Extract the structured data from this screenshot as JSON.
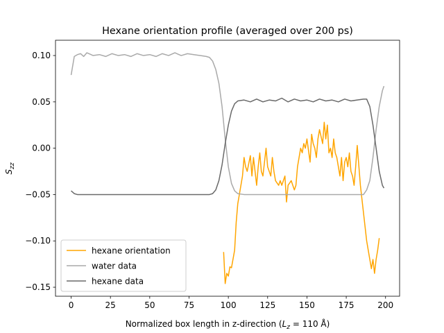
{
  "chart_data": {
    "type": "line",
    "title": "Hexane orientation profile (averaged over 200 ps)",
    "xlabel": [
      "Normalized box length in z-direction (",
      "L",
      "z",
      " = 110 Å)"
    ],
    "ylabel": [
      "S",
      "zz"
    ],
    "xlim": [
      -9.95,
      208.95
    ],
    "ylim": [
      -0.1597,
      0.1165
    ],
    "xticks": [
      0,
      25,
      50,
      75,
      100,
      125,
      150,
      175,
      200
    ],
    "yticks": [
      {
        "value": -0.15,
        "label": "−0.15"
      },
      {
        "value": -0.1,
        "label": "−0.10"
      },
      {
        "value": -0.05,
        "label": "−0.05"
      },
      {
        "value": 0,
        "label": "0.00"
      },
      {
        "value": 0.05,
        "label": "0.05"
      },
      {
        "value": 0.1,
        "label": "0.10"
      }
    ],
    "legend": "lower left",
    "series": [
      {
        "name": "hexane orientation",
        "color": "#ffa500",
        "x": [
          97,
          98,
          99,
          100,
          101,
          102,
          104,
          105,
          106,
          107,
          108,
          109,
          110,
          111,
          112,
          114,
          115,
          116,
          118,
          119,
          120,
          121,
          122,
          124,
          125,
          126,
          127,
          128,
          129,
          130,
          132,
          133,
          134,
          136,
          137,
          138,
          140,
          141,
          142,
          143,
          144,
          145,
          146,
          147,
          148,
          149,
          150,
          152,
          153,
          154,
          155,
          156,
          157,
          158,
          160,
          161,
          162,
          163,
          164,
          165,
          166,
          167,
          168,
          169,
          170,
          171,
          172,
          173,
          174,
          175,
          176,
          177,
          178,
          179,
          180,
          181,
          182,
          184,
          186,
          188,
          190,
          191,
          192,
          193,
          194,
          195,
          196
        ],
        "values": [
          -0.112,
          -0.146,
          -0.135,
          -0.138,
          -0.128,
          -0.129,
          -0.11,
          -0.08,
          -0.06,
          -0.05,
          -0.04,
          -0.03,
          -0.01,
          -0.02,
          -0.025,
          -0.008,
          -0.03,
          -0.01,
          -0.04,
          -0.02,
          -0.005,
          -0.025,
          -0.03,
          0.0,
          -0.02,
          -0.025,
          -0.03,
          -0.01,
          -0.025,
          -0.035,
          -0.04,
          -0.035,
          -0.04,
          -0.03,
          -0.058,
          -0.04,
          -0.035,
          -0.04,
          -0.045,
          -0.04,
          -0.02,
          -0.01,
          0.0,
          -0.005,
          0.005,
          0.0,
          0.01,
          -0.015,
          0.015,
          0.005,
          0.0,
          -0.01,
          0.01,
          0.02,
          0.005,
          0.028,
          0.01,
          0.025,
          -0.005,
          0.0,
          -0.01,
          0.01,
          -0.005,
          -0.01,
          -0.02,
          -0.03,
          -0.01,
          -0.035,
          -0.015,
          -0.01,
          -0.02,
          -0.005,
          -0.025,
          -0.03,
          -0.04,
          -0.02,
          0.003,
          -0.04,
          -0.07,
          -0.1,
          -0.12,
          -0.13,
          -0.12,
          -0.135,
          -0.12,
          -0.11,
          -0.097
        ]
      },
      {
        "name": "water data",
        "color": "#a9a9a9",
        "x": [
          0,
          2,
          4,
          6,
          8,
          10,
          14,
          18,
          22,
          26,
          30,
          34,
          38,
          42,
          46,
          50,
          54,
          58,
          62,
          66,
          70,
          74,
          78,
          82,
          86,
          88,
          90,
          92,
          94,
          96,
          98,
          100,
          102,
          104,
          106,
          110,
          130,
          150,
          170,
          186,
          188,
          190,
          192,
          194,
          196,
          198,
          199
        ],
        "values": [
          0.079,
          0.099,
          0.101,
          0.102,
          0.099,
          0.103,
          0.1,
          0.101,
          0.099,
          0.102,
          0.1,
          0.101,
          0.099,
          0.102,
          0.1,
          0.101,
          0.099,
          0.102,
          0.1,
          0.103,
          0.1,
          0.102,
          0.101,
          0.1,
          0.099,
          0.098,
          0.094,
          0.085,
          0.07,
          0.045,
          0.01,
          -0.02,
          -0.038,
          -0.046,
          -0.049,
          -0.05,
          -0.05,
          -0.05,
          -0.05,
          -0.05,
          -0.045,
          -0.035,
          -0.01,
          0.02,
          0.045,
          0.062,
          0.067
        ]
      },
      {
        "name": "hexane data",
        "color": "#696969",
        "x": [
          0,
          2,
          4,
          10,
          30,
          50,
          70,
          88,
          90,
          92,
          94,
          96,
          98,
          100,
          102,
          104,
          106,
          110,
          114,
          118,
          122,
          126,
          130,
          134,
          138,
          142,
          146,
          150,
          154,
          158,
          162,
          166,
          170,
          174,
          178,
          182,
          186,
          188,
          190,
          192,
          194,
          196,
          198,
          199
        ],
        "values": [
          -0.046,
          -0.049,
          -0.05,
          -0.05,
          -0.05,
          -0.05,
          -0.05,
          -0.05,
          -0.049,
          -0.045,
          -0.035,
          -0.018,
          0.005,
          0.025,
          0.04,
          0.048,
          0.051,
          0.052,
          0.05,
          0.053,
          0.05,
          0.052,
          0.051,
          0.054,
          0.05,
          0.053,
          0.051,
          0.052,
          0.05,
          0.053,
          0.051,
          0.052,
          0.05,
          0.053,
          0.051,
          0.052,
          0.053,
          0.053,
          0.045,
          0.025,
          0.0,
          -0.025,
          -0.04,
          -0.043
        ]
      }
    ]
  }
}
